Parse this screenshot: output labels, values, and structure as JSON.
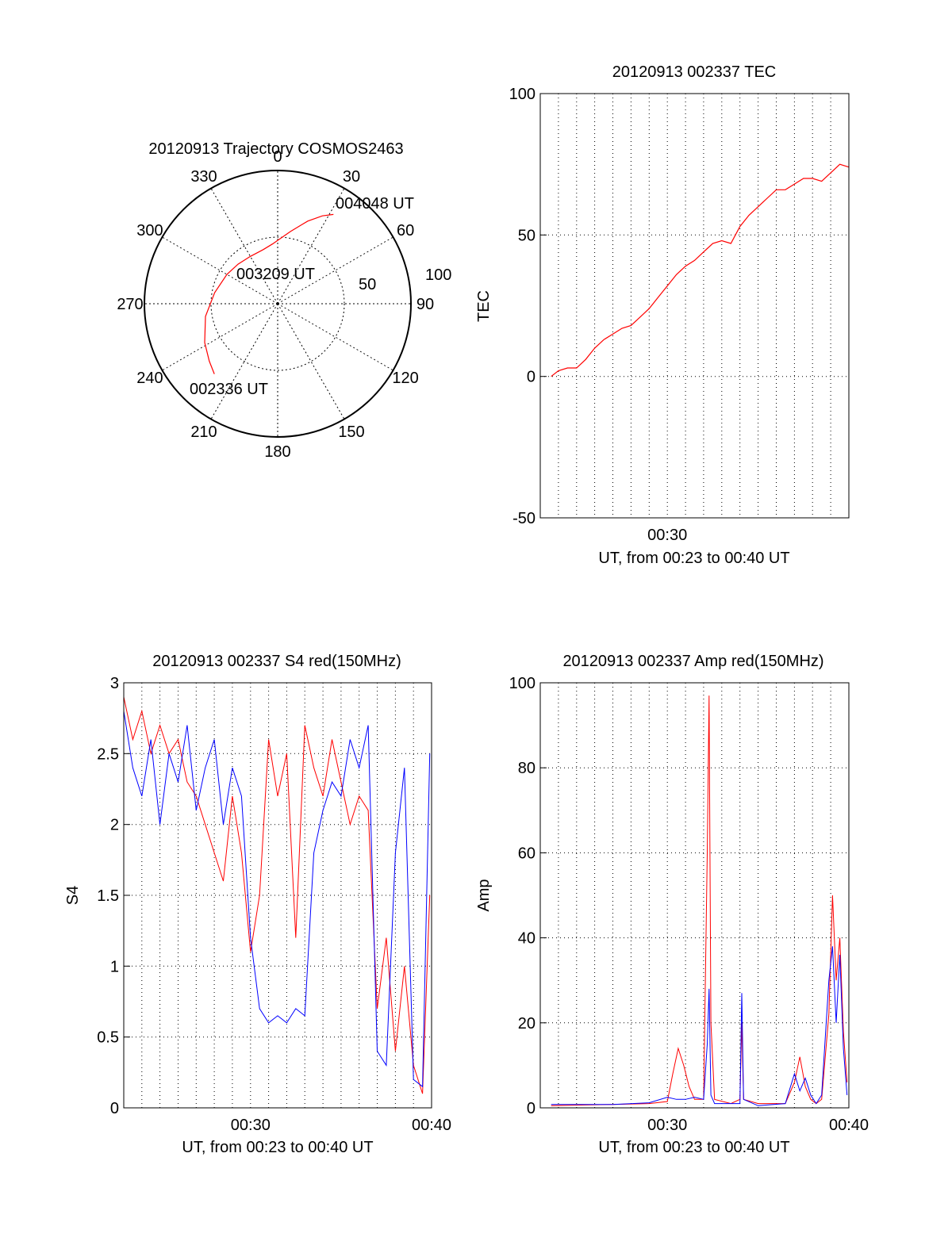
{
  "colors": {
    "red": "#ff0000",
    "blue": "#0000ff",
    "axis": "#000000",
    "grid": "#000000"
  },
  "chart_data": [
    {
      "type": "polar",
      "title": "20120913 Trajectory COSMOS2463",
      "azimuth_ticks": [
        "0",
        "30",
        "60",
        "90",
        "120",
        "150",
        "180",
        "210",
        "240",
        "270",
        "300",
        "330"
      ],
      "radial_ticks": [
        "50",
        "100"
      ],
      "rlim": [
        0,
        100
      ],
      "grid": true,
      "series": [
        {
          "color": "red",
          "points": [
            [
              222,
              71
            ],
            [
              230,
              67
            ],
            [
              242,
              62
            ],
            [
              260,
              55
            ],
            [
              280,
              48
            ],
            [
              300,
              44
            ],
            [
              315,
              42
            ],
            [
              330,
              41
            ],
            [
              345,
              42
            ],
            [
              355,
              45
            ],
            [
              10,
              55
            ],
            [
              20,
              66
            ],
            [
              27,
              74
            ],
            [
              32,
              79
            ]
          ]
        }
      ],
      "annotations": [
        {
          "text": "004048 UT",
          "az": 32,
          "r": 79
        },
        {
          "text": "003209 UT",
          "az": 345,
          "r": 42
        },
        {
          "text": "002336 UT",
          "az": 222,
          "r": 71
        }
      ]
    },
    {
      "type": "line",
      "title": "20120913 002337 TEC",
      "xlabel": "UT, from 00:23 to 00:40 UT",
      "ylabel": "TEC",
      "xlim": [
        23.0,
        40.0
      ],
      "ylim": [
        -50,
        100
      ],
      "yticks": [
        "100",
        "50",
        "0",
        "-50"
      ],
      "xticks": [
        {
          "value": 30,
          "label": "00:30"
        }
      ],
      "grid": true,
      "series": [
        {
          "color": "red",
          "x": [
            23.6,
            24.0,
            24.5,
            25.0,
            25.5,
            26.0,
            26.5,
            27.0,
            27.5,
            28.0,
            28.5,
            29.0,
            29.5,
            30.0,
            30.5,
            31.0,
            31.5,
            32.0,
            32.5,
            33.0,
            33.5,
            34.0,
            34.5,
            35.0,
            35.5,
            36.0,
            36.5,
            37.0,
            37.5,
            38.0,
            38.5,
            39.0,
            39.5,
            40.0
          ],
          "values": [
            0,
            2,
            3,
            3,
            6,
            10,
            13,
            15,
            17,
            18,
            21,
            24,
            28,
            32,
            36,
            39,
            41,
            44,
            47,
            48,
            47,
            53,
            57,
            60,
            63,
            66,
            66,
            68,
            70,
            70,
            69,
            72,
            75,
            74
          ]
        }
      ]
    },
    {
      "type": "line",
      "title": "20120913 002337 S4 red(150MHz)",
      "xlabel": "UT, from 00:23 to 00:40 UT",
      "ylabel": "S4",
      "xlim": [
        23.0,
        40.0
      ],
      "ylim": [
        0,
        3
      ],
      "yticks": [
        "3",
        "2.5",
        "2",
        "1.5",
        "1",
        "0.5",
        "0"
      ],
      "xticks": [
        {
          "value": 30,
          "label": "00:30"
        },
        {
          "value": 40,
          "label": "00:40"
        }
      ],
      "grid": true,
      "series": [
        {
          "color": "red",
          "x": [
            23.0,
            23.5,
            24.0,
            24.5,
            25.0,
            25.5,
            26.0,
            26.5,
            27.0,
            27.5,
            28.0,
            28.5,
            29.0,
            29.5,
            30.0,
            30.5,
            31.0,
            31.5,
            32.0,
            32.5,
            33.0,
            33.5,
            34.0,
            34.5,
            35.0,
            35.5,
            36.0,
            36.5,
            37.0,
            37.5,
            38.0,
            38.5,
            39.0,
            39.5,
            39.9
          ],
          "values": [
            2.9,
            2.6,
            2.8,
            2.5,
            2.7,
            2.5,
            2.6,
            2.3,
            2.2,
            2.0,
            1.8,
            1.6,
            2.2,
            1.8,
            1.1,
            1.5,
            2.6,
            2.2,
            2.5,
            1.2,
            2.7,
            2.4,
            2.2,
            2.6,
            2.3,
            2.0,
            2.2,
            2.1,
            0.7,
            1.2,
            0.4,
            1.0,
            0.3,
            0.1,
            1.5
          ]
        },
        {
          "color": "blue",
          "x": [
            23.0,
            23.5,
            24.0,
            24.5,
            25.0,
            25.5,
            26.0,
            26.5,
            27.0,
            27.5,
            28.0,
            28.5,
            29.0,
            29.5,
            30.0,
            30.5,
            31.0,
            31.5,
            32.0,
            32.5,
            33.0,
            33.5,
            34.0,
            34.5,
            35.0,
            35.5,
            36.0,
            36.5,
            37.0,
            37.5,
            38.0,
            38.5,
            39.0,
            39.5,
            39.9
          ],
          "values": [
            2.8,
            2.4,
            2.2,
            2.6,
            2.0,
            2.5,
            2.3,
            2.7,
            2.1,
            2.4,
            2.6,
            2.0,
            2.4,
            2.2,
            1.2,
            0.7,
            0.6,
            0.65,
            0.6,
            0.7,
            0.65,
            1.8,
            2.1,
            2.3,
            2.2,
            2.6,
            2.4,
            2.7,
            0.4,
            0.3,
            1.8,
            2.4,
            0.2,
            0.15,
            2.5
          ]
        }
      ]
    },
    {
      "type": "line",
      "title": "20120913 002337 Amp red(150MHz)",
      "xlabel": "UT, from 00:23 to 00:40 UT",
      "ylabel": "Amp",
      "xlim": [
        23.0,
        40.0
      ],
      "ylim": [
        0,
        100
      ],
      "yticks": [
        "100",
        "80",
        "60",
        "40",
        "20",
        "0"
      ],
      "xticks": [
        {
          "value": 30,
          "label": "00:30"
        },
        {
          "value": 40,
          "label": "00:40"
        }
      ],
      "grid": true,
      "series": [
        {
          "color": "red",
          "x": [
            23.6,
            27.0,
            29.0,
            30.0,
            30.3,
            30.6,
            30.9,
            31.2,
            31.5,
            32.0,
            32.2,
            32.3,
            32.4,
            32.6,
            33.5,
            34.0,
            34.1,
            34.2,
            35.0,
            36.5,
            37.0,
            37.3,
            37.6,
            37.9,
            38.2,
            38.5,
            38.9,
            39.1,
            39.3,
            39.5,
            39.7,
            39.9
          ],
          "values": [
            0.5,
            0.8,
            1.0,
            1.5,
            8,
            14,
            10,
            5,
            2,
            2,
            60,
            97,
            20,
            2,
            1,
            2,
            20,
            2,
            1,
            1,
            6,
            12,
            5,
            2,
            1,
            2,
            22,
            50,
            30,
            40,
            18,
            6
          ]
        },
        {
          "color": "blue",
          "x": [
            23.6,
            27.0,
            29.0,
            30.0,
            30.5,
            31.0,
            31.5,
            32.0,
            32.2,
            32.3,
            32.4,
            32.6,
            33.5,
            34.0,
            34.1,
            34.2,
            35.0,
            36.5,
            37.0,
            37.3,
            37.6,
            37.9,
            38.2,
            38.5,
            38.9,
            39.1,
            39.3,
            39.5,
            39.7,
            39.9
          ],
          "values": [
            0.8,
            0.8,
            1.2,
            2.5,
            2,
            2,
            2.5,
            2,
            15,
            28,
            3,
            1,
            1,
            1,
            27,
            2,
            0.5,
            1,
            8,
            4,
            7,
            3,
            1,
            3,
            30,
            38,
            20,
            36,
            14,
            3
          ]
        }
      ]
    }
  ]
}
